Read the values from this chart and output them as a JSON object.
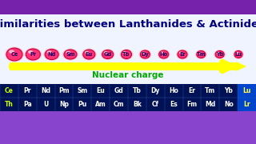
{
  "title": "Similarities between Lanthanides & Actinides",
  "title_color": "#000080",
  "title_fontsize": 9.5,
  "bg_color": "#e8f0ff",
  "header_bar_color": "#7722aa",
  "table_bg_color": "#001155",
  "table_text_color": "#ffffff",
  "nuclear_charge_text": "Nuclear charge",
  "nuclear_charge_color": "#00aa00",
  "arrow_color": "#ffff00",
  "elements_lanthanides": [
    "Ce",
    "Pr",
    "Nd",
    "Pm",
    "Sm",
    "Eu",
    "Gd",
    "Tb",
    "Dy",
    "Ho",
    "Er",
    "Tm",
    "Yb",
    "Lu"
  ],
  "elements_actinides": [
    "Th",
    "Pa",
    "U",
    "Np",
    "Pu",
    "Am",
    "Cm",
    "Bk",
    "Cf",
    "Es",
    "Fm",
    "Md",
    "No",
    "Lr"
  ],
  "elements_shown": [
    "Ce",
    "Pr",
    "Nd",
    "Sm",
    "Eu",
    "Gd",
    "Tb",
    "Dy",
    "Ho",
    "Er",
    "Tm",
    "Yb",
    "Lu"
  ],
  "bubble_fill": "#ff3377",
  "bubble_edge": "#cc0033",
  "bubble_text_color": "#220066",
  "first_col_text_color": "#ccff00",
  "last_col_color": "#0044cc",
  "last_col_text_color": "#ffff44",
  "footer_bar_color": "#8844cc"
}
